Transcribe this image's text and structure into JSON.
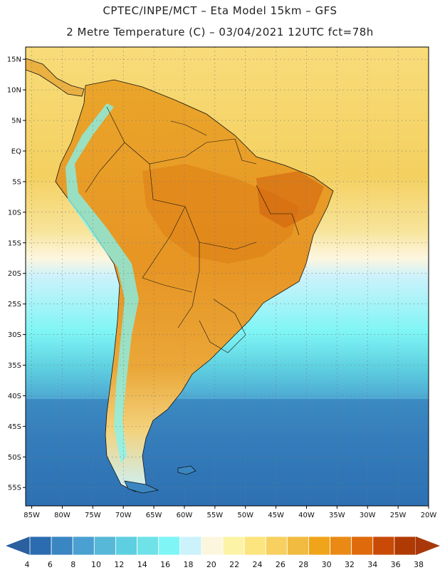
{
  "header": {
    "line1": "CPTEC/INPE/MCT –  Eta Model 15km – GFS",
    "line2": "2 Metre Temperature (C) – 03/04/2021 12UTC fct=78h"
  },
  "map": {
    "lon_range": [
      -86,
      -20
    ],
    "lat_range": [
      -58,
      17
    ],
    "lat_ticks": [
      {
        "value": 15,
        "label": "15N"
      },
      {
        "value": 10,
        "label": "10N"
      },
      {
        "value": 5,
        "label": "5N"
      },
      {
        "value": 0,
        "label": "EQ"
      },
      {
        "value": -5,
        "label": "5S"
      },
      {
        "value": -10,
        "label": "10S"
      },
      {
        "value": -15,
        "label": "15S"
      },
      {
        "value": -20,
        "label": "20S"
      },
      {
        "value": -25,
        "label": "25S"
      },
      {
        "value": -30,
        "label": "30S"
      },
      {
        "value": -35,
        "label": "35S"
      },
      {
        "value": -40,
        "label": "40S"
      },
      {
        "value": -45,
        "label": "45S"
      },
      {
        "value": -50,
        "label": "50S"
      },
      {
        "value": -55,
        "label": "55S"
      }
    ],
    "lon_ticks": [
      {
        "value": -85,
        "label": "85W"
      },
      {
        "value": -80,
        "label": "80W"
      },
      {
        "value": -75,
        "label": "75W"
      },
      {
        "value": -70,
        "label": "70W"
      },
      {
        "value": -65,
        "label": "65W"
      },
      {
        "value": -60,
        "label": "60W"
      },
      {
        "value": -55,
        "label": "55W"
      },
      {
        "value": -50,
        "label": "50W"
      },
      {
        "value": -45,
        "label": "45W"
      },
      {
        "value": -40,
        "label": "40W"
      },
      {
        "value": -35,
        "label": "35W"
      },
      {
        "value": -30,
        "label": "30W"
      },
      {
        "value": -25,
        "label": "25W"
      },
      {
        "value": -20,
        "label": "20W"
      }
    ]
  },
  "legend": {
    "values": [
      "4",
      "6",
      "8",
      "10",
      "12",
      "14",
      "16",
      "18",
      "20",
      "22",
      "24",
      "26",
      "28",
      "30",
      "32",
      "34",
      "36",
      "38"
    ],
    "colors": [
      "#2b6cb0",
      "#3a86c2",
      "#4aa0d0",
      "#57b8d8",
      "#5ecfe0",
      "#6fe2e8",
      "#7ff5f5",
      "#ccf2fb",
      "#fdf6df",
      "#fdf3a6",
      "#fce47f",
      "#f7d05f",
      "#f0bb40",
      "#f0a41a",
      "#ea8a14",
      "#de6a0c",
      "#c84a06",
      "#b03a04"
    ],
    "left_arrow_color": "#2a5fa0",
    "right_arrow_color": "#a8380a"
  }
}
